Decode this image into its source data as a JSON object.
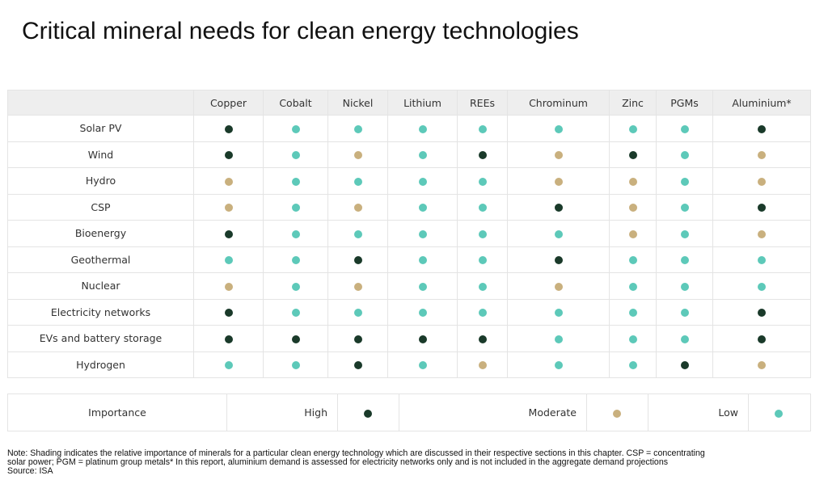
{
  "title": "Critical mineral needs for clean energy technologies",
  "colors": {
    "high": "#1a3a2a",
    "moderate": "#c9b07e",
    "low": "#5dc9b9"
  },
  "minerals": [
    "Copper",
    "Cobalt",
    "Nickel",
    "Lithium",
    "REEs",
    "Chrominum",
    "Zinc",
    "PGMs",
    "Aluminium*"
  ],
  "rows": [
    {
      "label": "Solar PV",
      "levels": [
        "high",
        "low",
        "low",
        "low",
        "low",
        "low",
        "low",
        "low",
        "high"
      ]
    },
    {
      "label": "Wind",
      "levels": [
        "high",
        "low",
        "moderate",
        "low",
        "high",
        "moderate",
        "high",
        "low",
        "moderate"
      ]
    },
    {
      "label": "Hydro",
      "levels": [
        "moderate",
        "low",
        "low",
        "low",
        "low",
        "moderate",
        "moderate",
        "low",
        "moderate"
      ]
    },
    {
      "label": "CSP",
      "levels": [
        "moderate",
        "low",
        "moderate",
        "low",
        "low",
        "high",
        "moderate",
        "low",
        "high"
      ]
    },
    {
      "label": "Bioenergy",
      "levels": [
        "high",
        "low",
        "low",
        "low",
        "low",
        "low",
        "moderate",
        "low",
        "moderate"
      ]
    },
    {
      "label": "Geothermal",
      "levels": [
        "low",
        "low",
        "high",
        "low",
        "low",
        "high",
        "low",
        "low",
        "low"
      ]
    },
    {
      "label": "Nuclear",
      "levels": [
        "moderate",
        "low",
        "moderate",
        "low",
        "low",
        "moderate",
        "low",
        "low",
        "low"
      ]
    },
    {
      "label": "Electricity networks",
      "levels": [
        "high",
        "low",
        "low",
        "low",
        "low",
        "low",
        "low",
        "low",
        "high"
      ]
    },
    {
      "label": "EVs and battery storage",
      "levels": [
        "high",
        "high",
        "high",
        "high",
        "high",
        "low",
        "low",
        "low",
        "high"
      ]
    },
    {
      "label": "Hydrogen",
      "levels": [
        "low",
        "low",
        "high",
        "low",
        "moderate",
        "low",
        "low",
        "high",
        "moderate"
      ]
    }
  ],
  "legend": {
    "label": "Importance",
    "high": "High",
    "moderate": "Moderate",
    "low": "Low"
  },
  "note": {
    "line1": "Note: Shading indicates the relative importance of minerals for a particular clean energy technology which are discussed in their respective sections in this chapter. CSP = concentrating",
    "line2": "solar power; PGM = platinum group metals* In this report, aluminium demand is assessed for electricity networks only and is not included in the aggregate demand projections",
    "line3": "Source: ISA"
  }
}
